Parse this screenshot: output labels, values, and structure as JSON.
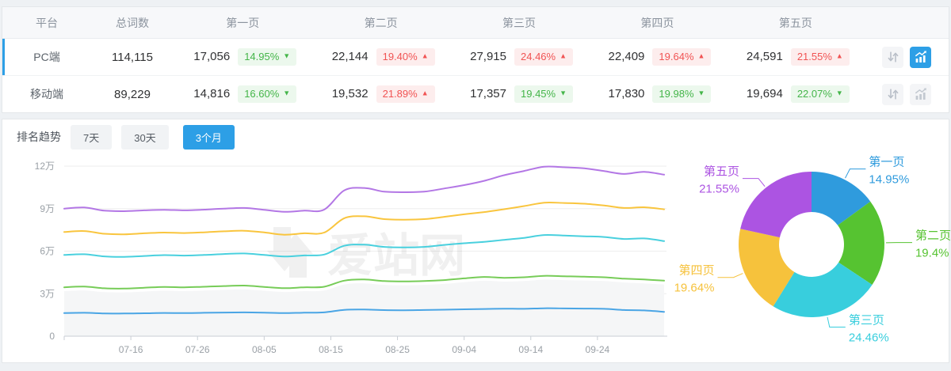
{
  "colors": {
    "accent_blue": "#2d9fe6",
    "badge_up_red": "#f15353",
    "badge_down_green": "#44b549",
    "area_fill": "#f5f6f7"
  },
  "table": {
    "columns": [
      "平台",
      "总词数",
      "第一页",
      "第二页",
      "第三页",
      "第四页",
      "第五页"
    ],
    "action_icons": [
      "up-down-arrows",
      "bar-line-chart"
    ],
    "rows": [
      {
        "platform": "PC端",
        "total": "114,115",
        "selected": true,
        "chart_active": true,
        "pages": [
          {
            "value": "17,056",
            "pct": "14.95%",
            "trend": "down"
          },
          {
            "value": "22,144",
            "pct": "19.40%",
            "trend": "up"
          },
          {
            "value": "27,915",
            "pct": "24.46%",
            "trend": "up"
          },
          {
            "value": "22,409",
            "pct": "19.64%",
            "trend": "up"
          },
          {
            "value": "24,591",
            "pct": "21.55%",
            "trend": "up"
          }
        ]
      },
      {
        "platform": "移动端",
        "total": "89,229",
        "selected": false,
        "chart_active": false,
        "pages": [
          {
            "value": "14,816",
            "pct": "16.60%",
            "trend": "down"
          },
          {
            "value": "19,532",
            "pct": "21.89%",
            "trend": "up"
          },
          {
            "value": "17,357",
            "pct": "19.45%",
            "trend": "down"
          },
          {
            "value": "17,830",
            "pct": "19.98%",
            "trend": "down"
          },
          {
            "value": "19,694",
            "pct": "22.07%",
            "trend": "down"
          }
        ]
      }
    ]
  },
  "trend": {
    "title": "排名趋势",
    "tabs": [
      {
        "label": "7天",
        "active": false
      },
      {
        "label": "30天",
        "active": false
      },
      {
        "label": "3个月",
        "active": true
      }
    ]
  },
  "watermark": {
    "text": "爱站网"
  },
  "chart_data": [
    {
      "type": "line",
      "title": "排名趋势（3个月）",
      "unit": "万",
      "ylim": [
        0,
        12
      ],
      "grid": true,
      "legend": "none",
      "y_ticks": [
        {
          "label": "0",
          "value": 0
        },
        {
          "label": "3万",
          "value": 3
        },
        {
          "label": "6万",
          "value": 6
        },
        {
          "label": "9万",
          "value": 9
        },
        {
          "label": "12万",
          "value": 12
        }
      ],
      "x_tick_labels": [
        "07-16",
        "07-26",
        "08-05",
        "08-15",
        "08-25",
        "09-04",
        "09-14",
        "09-24"
      ],
      "x_tick_days": [
        10,
        20,
        30,
        40,
        50,
        60,
        70,
        80
      ],
      "x_span_days": 90,
      "x_dates": [
        "07-06",
        "07-09",
        "07-12",
        "07-15",
        "07-18",
        "07-21",
        "07-24",
        "07-27",
        "07-30",
        "08-02",
        "08-05",
        "08-08",
        "08-11",
        "08-14",
        "08-17",
        "08-20",
        "08-23",
        "08-26",
        "08-29",
        "09-01",
        "09-04",
        "09-07",
        "09-10",
        "09-13",
        "09-16",
        "09-19",
        "09-22",
        "09-25",
        "09-28",
        "10-01",
        "10-04"
      ],
      "series": [
        {
          "name": "第一页",
          "color": "#4aa5e5",
          "values": [
            1.63,
            1.65,
            1.61,
            1.6,
            1.62,
            1.64,
            1.63,
            1.65,
            1.67,
            1.68,
            1.66,
            1.63,
            1.66,
            1.68,
            1.86,
            1.88,
            1.84,
            1.83,
            1.85,
            1.87,
            1.9,
            1.92,
            1.94,
            1.93,
            1.97,
            1.96,
            1.95,
            1.93,
            1.85,
            1.82,
            1.72
          ]
        },
        {
          "name": "第二页",
          "color": "#77cc58",
          "area": true,
          "area_color": "#f5f6f7",
          "area_offset": 0.27,
          "values": [
            3.45,
            3.5,
            3.38,
            3.36,
            3.42,
            3.48,
            3.45,
            3.49,
            3.54,
            3.57,
            3.48,
            3.39,
            3.45,
            3.49,
            3.92,
            4.0,
            3.89,
            3.86,
            3.89,
            3.96,
            4.08,
            4.18,
            4.12,
            4.16,
            4.26,
            4.23,
            4.2,
            4.16,
            4.06,
            4.0,
            3.92
          ]
        },
        {
          "name": "第三页",
          "color": "#49d0de",
          "values": [
            5.73,
            5.78,
            5.63,
            5.6,
            5.66,
            5.72,
            5.69,
            5.73,
            5.8,
            5.84,
            5.73,
            5.62,
            5.7,
            5.76,
            6.38,
            6.46,
            6.3,
            6.27,
            6.3,
            6.44,
            6.56,
            6.66,
            6.8,
            6.94,
            7.14,
            7.1,
            7.05,
            7.0,
            6.86,
            6.9,
            6.71
          ]
        },
        {
          "name": "第四页",
          "color": "#f9c53e",
          "values": [
            7.35,
            7.42,
            7.23,
            7.19,
            7.26,
            7.31,
            7.28,
            7.33,
            7.4,
            7.44,
            7.32,
            7.16,
            7.26,
            7.31,
            8.32,
            8.46,
            8.26,
            8.22,
            8.26,
            8.42,
            8.6,
            8.76,
            8.96,
            9.18,
            9.42,
            9.4,
            9.35,
            9.22,
            9.05,
            9.1,
            8.95
          ]
        },
        {
          "name": "第五页",
          "color": "#b377e5",
          "values": [
            9.0,
            9.08,
            8.86,
            8.82,
            8.88,
            8.92,
            8.88,
            8.93,
            9.0,
            9.05,
            8.92,
            8.78,
            8.86,
            8.93,
            10.28,
            10.46,
            10.2,
            10.16,
            10.2,
            10.42,
            10.66,
            10.96,
            11.36,
            11.66,
            11.96,
            11.92,
            11.85,
            11.65,
            11.45,
            11.6,
            11.4
          ]
        }
      ]
    },
    {
      "type": "pie",
      "donut": true,
      "legend": "outside-labels",
      "segments": [
        {
          "label": "第一页",
          "pct_label": "14.95%",
          "value": 14.95,
          "color": "#2f9bdd"
        },
        {
          "label": "第二页",
          "pct_label": "19.4%",
          "value": 19.4,
          "color": "#56c331"
        },
        {
          "label": "第三页",
          "pct_label": "24.46%",
          "value": 24.46,
          "color": "#38cedd"
        },
        {
          "label": "第四页",
          "pct_label": "19.64%",
          "value": 19.64,
          "color": "#f6c23c"
        },
        {
          "label": "第五页",
          "pct_label": "21.55%",
          "value": 21.55,
          "color": "#ac54e2"
        }
      ]
    }
  ]
}
